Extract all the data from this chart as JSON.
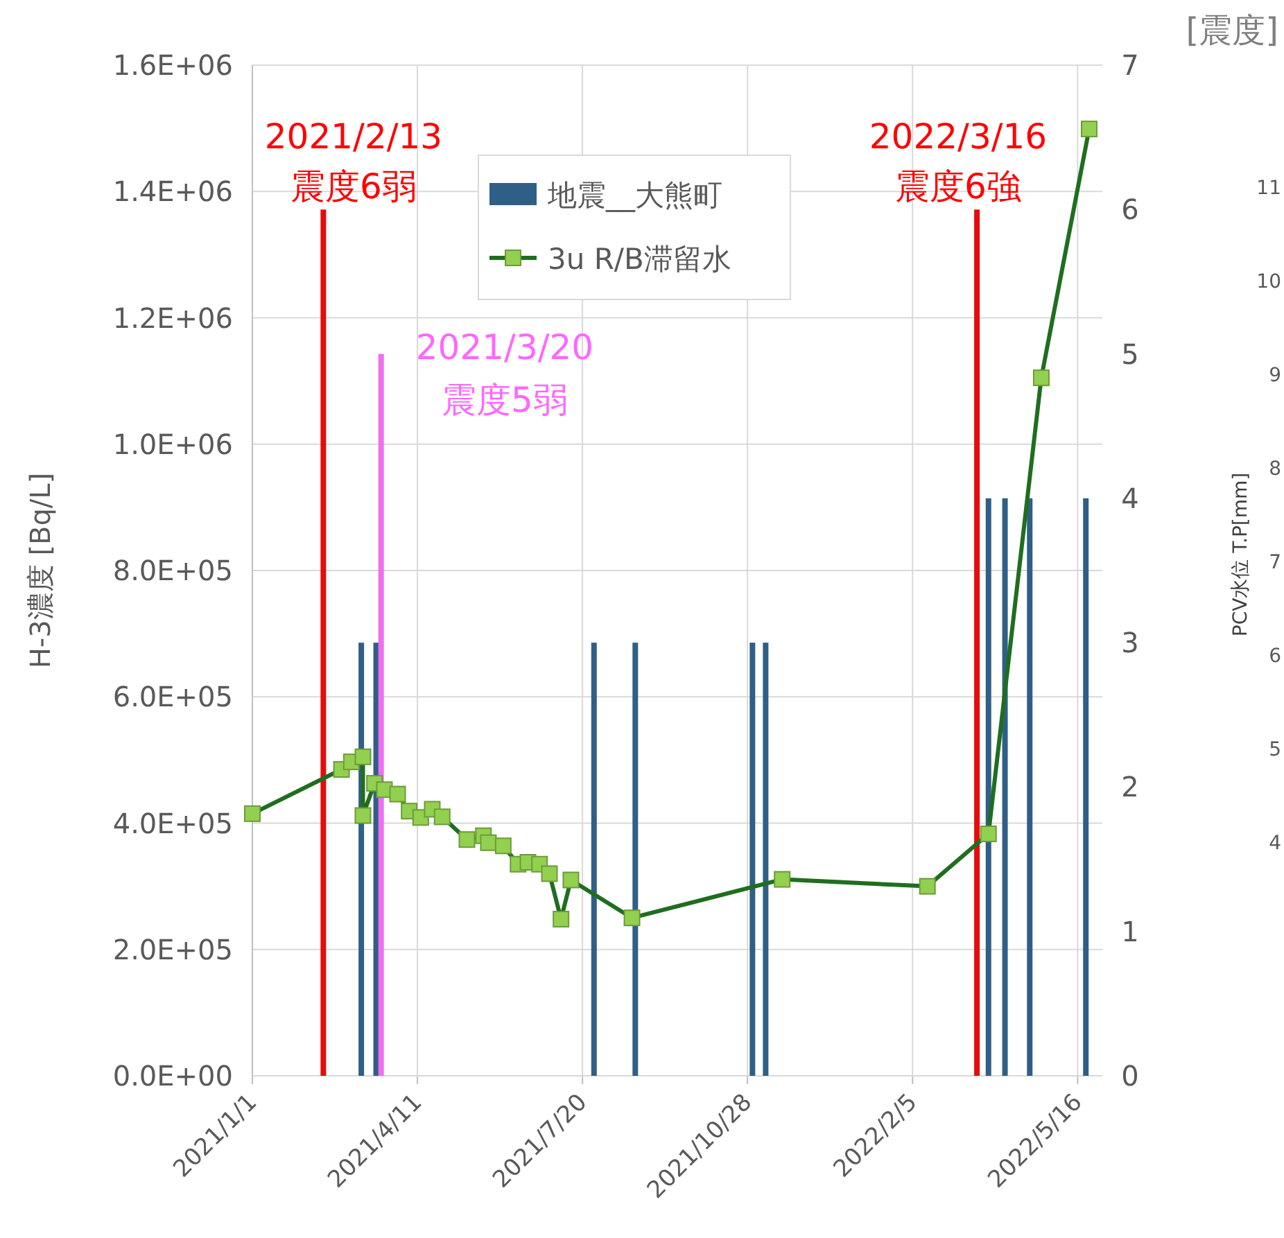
{
  "chart_data": {
    "type": "line",
    "ylabel": "H-3濃度 [Bq/L]",
    "y2label": "[震度]",
    "y3label": "PCV水位 T.P[mm]",
    "xlim": [
      "2021-01-01",
      "2022-05-31"
    ],
    "xticks": [
      {
        "value": "2021-01-01",
        "label": "2021/1/1"
      },
      {
        "value": "2021-04-11",
        "label": "2021/4/11"
      },
      {
        "value": "2021-07-20",
        "label": "2021/7/20"
      },
      {
        "value": "2021-10-28",
        "label": "2021/10/28"
      },
      {
        "value": "2022-02-05",
        "label": "2022/2/5"
      },
      {
        "value": "2022-05-16",
        "label": "2022/5/16"
      }
    ],
    "ylim": [
      0,
      1600000
    ],
    "yticks": [
      {
        "value": 0,
        "label": "0.0E+00"
      },
      {
        "value": 200000,
        "label": "2.0E+05"
      },
      {
        "value": 400000,
        "label": "4.0E+05"
      },
      {
        "value": 600000,
        "label": "6.0E+05"
      },
      {
        "value": 800000,
        "label": "8.0E+05"
      },
      {
        "value": 1000000,
        "label": "1.0E+06"
      },
      {
        "value": 1200000,
        "label": "1.2E+06"
      },
      {
        "value": 1400000,
        "label": "1.4E+06"
      },
      {
        "value": 1600000,
        "label": "1.6E+06"
      }
    ],
    "y2lim": [
      0,
      7
    ],
    "y2ticks": [
      0,
      1,
      2,
      3,
      4,
      5,
      6,
      7
    ],
    "y3lim": [
      1.5,
      12.3
    ],
    "y3ticks": [
      4,
      5,
      6,
      7,
      8,
      9,
      10,
      11
    ],
    "grid": true,
    "legend": "top",
    "series": [
      {
        "name": "地震__大熊町",
        "type": "bar",
        "axis": "y2",
        "color": "#2f5f86",
        "x": [
          "2021-02-13",
          "2021-03-08",
          "2021-03-17",
          "2021-03-20",
          "2021-07-27",
          "2021-08-21",
          "2021-10-31",
          "2021-11-08",
          "2022-03-16",
          "2022-03-23",
          "2022-04-02",
          "2022-04-17",
          "2022-05-21"
        ],
        "values": [
          6,
          3,
          3,
          5,
          3,
          3,
          3,
          3,
          6,
          4,
          4,
          4,
          4
        ],
        "colors": [
          "#e30d0d",
          "#2f5f86",
          "#2f5f86",
          "#ee6ff0",
          "#2f5f86",
          "#2f5f86",
          "#2f5f86",
          "#2f5f86",
          "#e30d0d",
          "#2f5f86",
          "#2f5f86",
          "#2f5f86",
          "#2f5f86"
        ]
      },
      {
        "name": "3u R/B滞留水",
        "color": "#1f6e1f",
        "marker": "square",
        "x": [
          "2021-01-01",
          "2021-02-24",
          "2021-03-02",
          "2021-03-09",
          "2021-03-09",
          "2021-03-16",
          "2021-03-22",
          "2021-03-30",
          "2021-04-06",
          "2021-04-13",
          "2021-04-20",
          "2021-04-26",
          "2021-05-11",
          "2021-05-21",
          "2021-05-24",
          "2021-06-02",
          "2021-06-11",
          "2021-06-17",
          "2021-06-24",
          "2021-06-30",
          "2021-07-07",
          "2021-07-13",
          "2021-08-19",
          "2021-11-18",
          "2022-02-14",
          "2022-03-23",
          "2022-04-24",
          "2022-05-23"
        ],
        "values": [
          415000,
          485000,
          497000,
          505000,
          412000,
          463000,
          453000,
          446000,
          419000,
          409000,
          422000,
          410000,
          374000,
          380000,
          369000,
          364000,
          335000,
          338000,
          335000,
          320000,
          248000,
          310000,
          250000,
          311000,
          300000,
          383000,
          1105000,
          1499000
        ]
      }
    ],
    "annotations": [
      "2021/2/13",
      "震度6弱",
      "2021/3/20",
      "震度5弱",
      "2022/3/16",
      "震度6強"
    ]
  }
}
